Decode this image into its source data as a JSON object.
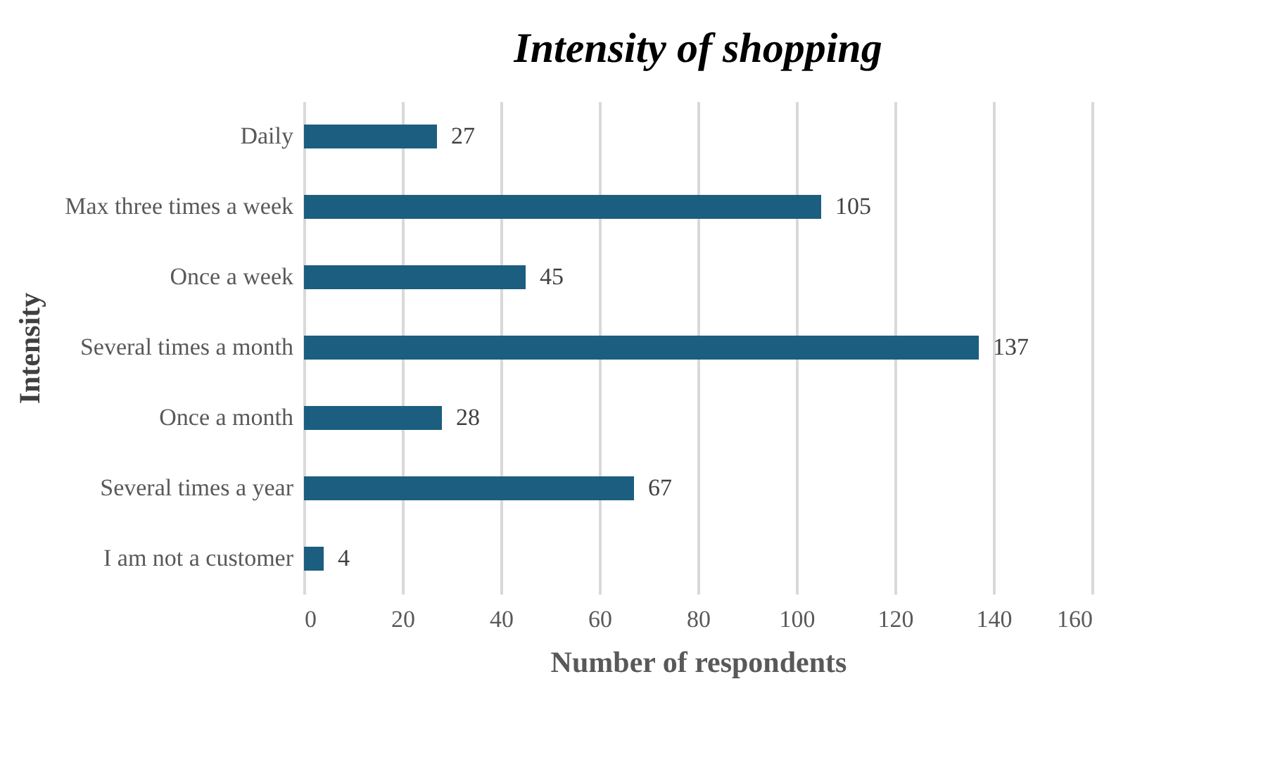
{
  "chart_data": {
    "type": "bar",
    "orientation": "horizontal",
    "title": "Intensity of shopping",
    "xlabel": "Number of respondents",
    "ylabel": "Intensity",
    "categories": [
      "Daily",
      "Max three times a week",
      "Once a week",
      "Several times a month",
      "Once a month",
      "Several times a year",
      "I am not a customer"
    ],
    "values": [
      27,
      105,
      45,
      137,
      28,
      67,
      4
    ],
    "color": "#1b5e80",
    "xlim": [
      0,
      160
    ],
    "xticks": [
      0,
      20,
      40,
      60,
      80,
      100,
      120,
      140,
      160
    ],
    "grid": "x",
    "data_labels": true
  }
}
